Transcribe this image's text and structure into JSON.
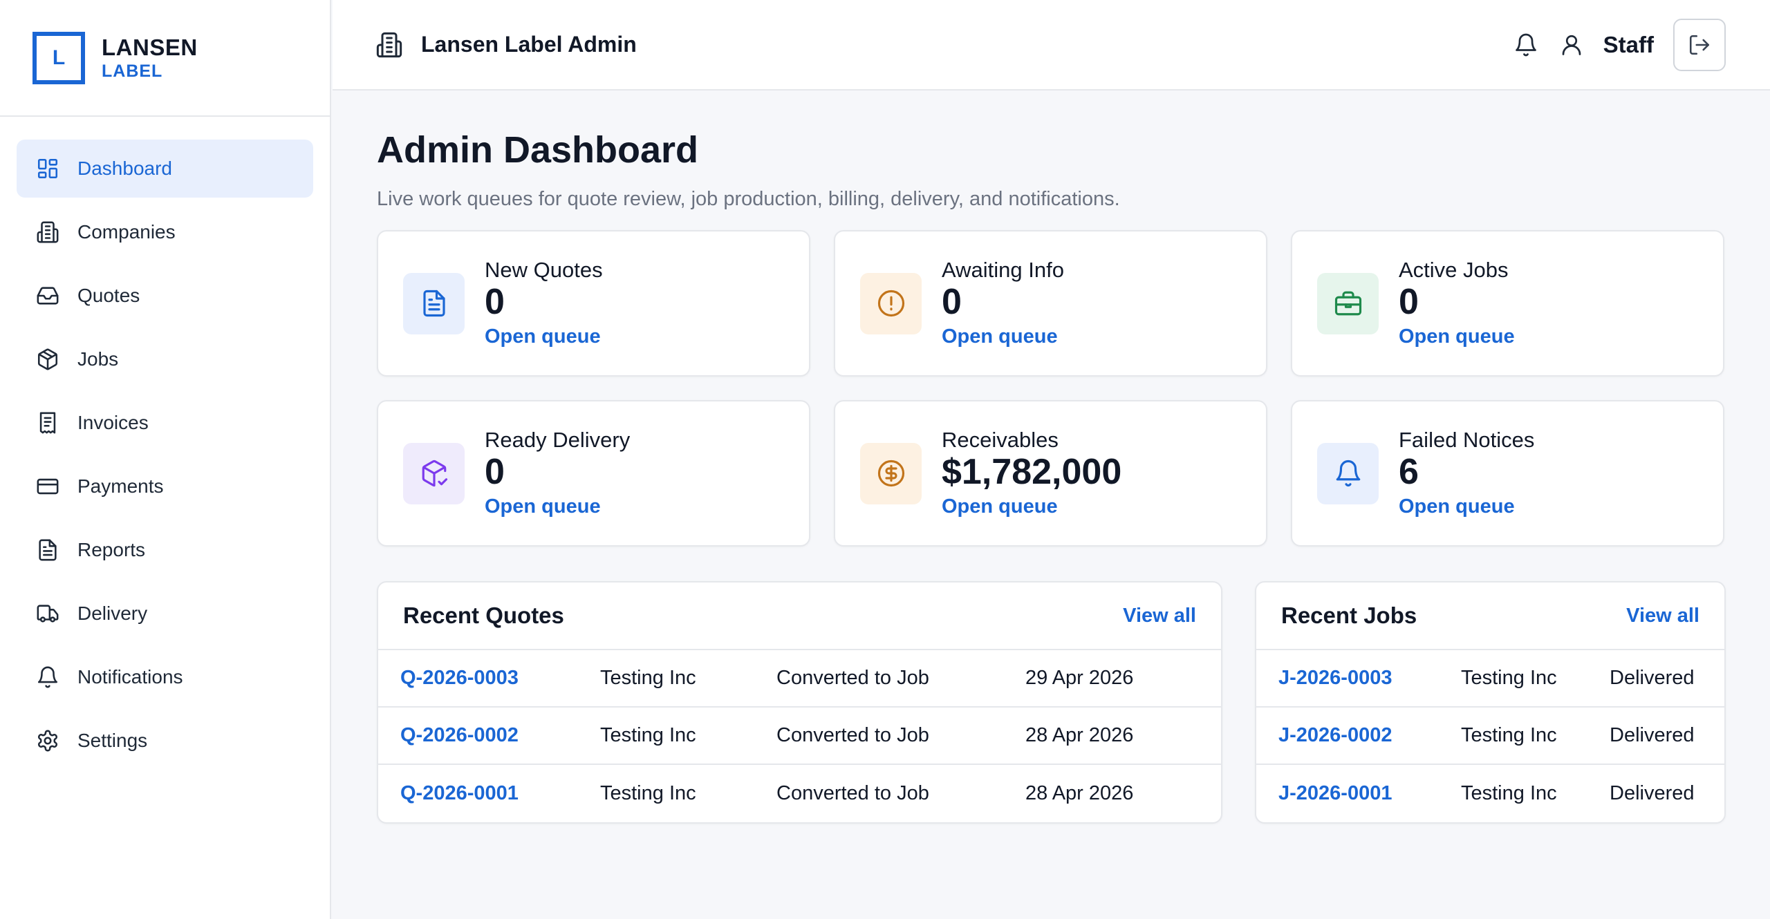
{
  "brand": {
    "mark": "L",
    "name": "LANSEN",
    "sub": "LABEL"
  },
  "sidebar": {
    "items": [
      {
        "label": "Dashboard",
        "icon": "dashboard-icon",
        "active": true
      },
      {
        "label": "Companies",
        "icon": "building-icon"
      },
      {
        "label": "Quotes",
        "icon": "inbox-icon"
      },
      {
        "label": "Jobs",
        "icon": "package-icon"
      },
      {
        "label": "Invoices",
        "icon": "receipt-icon"
      },
      {
        "label": "Payments",
        "icon": "credit-card-icon"
      },
      {
        "label": "Reports",
        "icon": "file-text-icon"
      },
      {
        "label": "Delivery",
        "icon": "truck-icon"
      },
      {
        "label": "Notifications",
        "icon": "bell-icon"
      },
      {
        "label": "Settings",
        "icon": "gear-icon"
      }
    ]
  },
  "header": {
    "title": "Lansen Label Admin",
    "user": "Staff"
  },
  "page": {
    "title": "Admin Dashboard",
    "subtitle": "Live work queues for quote review, job production, billing, delivery, and notifications."
  },
  "cards": [
    {
      "label": "New Quotes",
      "value": "0",
      "link": "Open queue",
      "icon": "file-text-icon",
      "color": "#1a66d4",
      "bg": "#e8effd"
    },
    {
      "label": "Awaiting Info",
      "value": "0",
      "link": "Open queue",
      "icon": "alert-circle-icon",
      "color": "#c2741a",
      "bg": "#fdf1e2"
    },
    {
      "label": "Active Jobs",
      "value": "0",
      "link": "Open queue",
      "icon": "briefcase-icon",
      "color": "#1f8a4c",
      "bg": "#e6f5ec"
    },
    {
      "label": "Ready Delivery",
      "value": "0",
      "link": "Open queue",
      "icon": "package-check-icon",
      "color": "#7c3aed",
      "bg": "#efebfc"
    },
    {
      "label": "Receivables",
      "value": "$1,782,000",
      "link": "Open queue",
      "icon": "dollar-circle-icon",
      "color": "#c2741a",
      "bg": "#fdf1e2"
    },
    {
      "label": "Failed Notices",
      "value": "6",
      "link": "Open queue",
      "icon": "bell-icon",
      "color": "#1a66d4",
      "bg": "#e8effd"
    }
  ],
  "recent_quotes": {
    "title": "Recent Quotes",
    "view_all": "View all",
    "rows": [
      {
        "id": "Q-2026-0003",
        "company": "Testing Inc",
        "status": "Converted to Job",
        "date": "29 Apr 2026"
      },
      {
        "id": "Q-2026-0002",
        "company": "Testing Inc",
        "status": "Converted to Job",
        "date": "28 Apr 2026"
      },
      {
        "id": "Q-2026-0001",
        "company": "Testing Inc",
        "status": "Converted to Job",
        "date": "28 Apr 2026"
      }
    ]
  },
  "recent_jobs": {
    "title": "Recent Jobs",
    "view_all": "View all",
    "rows": [
      {
        "id": "J-2026-0003",
        "company": "Testing Inc",
        "status": "Delivered"
      },
      {
        "id": "J-2026-0002",
        "company": "Testing Inc",
        "status": "Delivered"
      },
      {
        "id": "J-2026-0001",
        "company": "Testing Inc",
        "status": "Delivered"
      }
    ]
  }
}
